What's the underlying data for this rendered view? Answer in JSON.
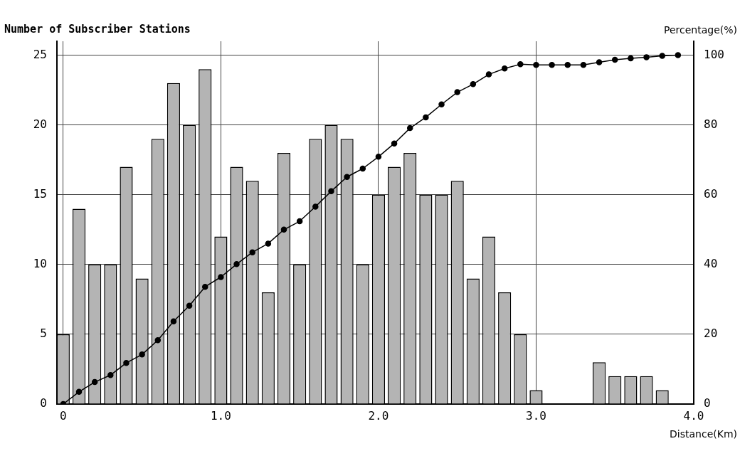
{
  "chart_data": {
    "type": "bar",
    "ylabel": "Number of Subscriber Stations",
    "y2label": "Percentage(%)",
    "xlabel": "Distance(Km)",
    "x": [
      0,
      0.1,
      0.2,
      0.3,
      0.4,
      0.5,
      0.6,
      0.7,
      0.8,
      0.9,
      1.0,
      1.1,
      1.2,
      1.3,
      1.4,
      1.5,
      1.6,
      1.7,
      1.8,
      1.9,
      2.0,
      2.1,
      2.2,
      2.3,
      2.4,
      2.5,
      2.6,
      2.7,
      2.8,
      2.9,
      3.0,
      3.1,
      3.2,
      3.3,
      3.4,
      3.5,
      3.6,
      3.7,
      3.8
    ],
    "series": [
      {
        "color": "#b4b4b4",
        "values": [
          5,
          14,
          10,
          10,
          17,
          9,
          19,
          23,
          20,
          24,
          12,
          17,
          16,
          8,
          18,
          10,
          19,
          20,
          19,
          10,
          15,
          17,
          18,
          15,
          15,
          16,
          9,
          12,
          8,
          5,
          1,
          0,
          0,
          0,
          3,
          2,
          2,
          2,
          1
        ]
      },
      {
        "type": "line",
        "axis": "y2",
        "color": "#000000",
        "x": [
          0,
          0.1,
          0.2,
          0.3,
          0.4,
          0.5,
          0.6,
          0.7,
          0.8,
          0.9,
          1.0,
          1.1,
          1.2,
          1.3,
          1.4,
          1.5,
          1.6,
          1.7,
          1.8,
          1.9,
          2.0,
          2.1,
          2.2,
          2.3,
          2.4,
          2.5,
          2.6,
          2.7,
          2.8,
          2.9,
          3.0,
          3.1,
          3.2,
          3.3,
          3.4,
          3.5,
          3.6,
          3.7,
          3.8,
          3.9
        ],
        "values": [
          0,
          3.5,
          6.3,
          8.3,
          11.8,
          14.2,
          18.3,
          23.7,
          28.2,
          33.6,
          36.4,
          40.1,
          43.5,
          46,
          50,
          52.4,
          56.6,
          61,
          65.1,
          67.5,
          70.9,
          74.7,
          79.1,
          82.2,
          85.9,
          89.4,
          91.7,
          94.5,
          96.2,
          97.4,
          97.2,
          97.2,
          97.2,
          97.2,
          98,
          98.7,
          99.1,
          99.4,
          99.8,
          100
        ]
      }
    ],
    "xlim": [
      -0.04,
      4.0
    ],
    "xticks": [
      0,
      {
        "value": 1,
        "label": "1.0"
      },
      {
        "value": 2,
        "label": "2.0"
      },
      {
        "value": 3,
        "label": "3.0"
      },
      {
        "value": 4,
        "label": "4.0"
      }
    ],
    "ylim": [
      0,
      26
    ],
    "yticks": [
      0,
      5,
      10,
      15,
      20,
      25
    ],
    "y2lim": [
      0,
      104
    ],
    "y2ticks": [
      0,
      20,
      40,
      60,
      80,
      100
    ],
    "grid": true,
    "marker": "circle",
    "line_style": "solid",
    "legend": false
  }
}
